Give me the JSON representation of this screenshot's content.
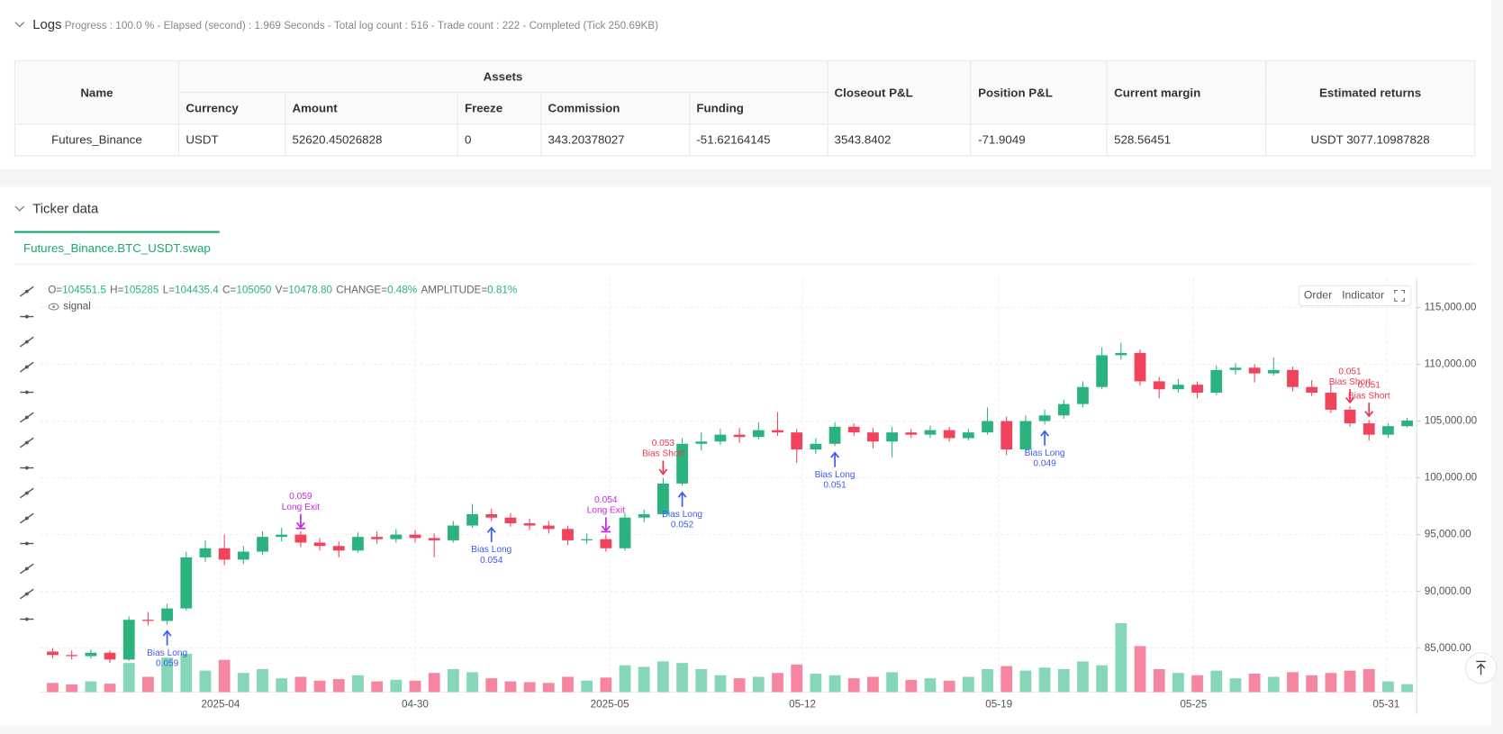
{
  "logs": {
    "title": "Logs",
    "summary": "Progress : 100.0 % - Elapsed (second) : 1.969  Seconds - Total log count : 516 - Trade count : 222 - Completed (Tick 250.69KB)"
  },
  "table": {
    "group": "Assets",
    "columns": [
      "Name",
      "Currency",
      "Amount",
      "Freeze",
      "Commission",
      "Funding",
      "Closeout P&L",
      "Position P&L",
      "Current margin",
      "Estimated returns"
    ],
    "rows": [
      [
        "Futures_Binance",
        "USDT",
        "52620.45026828",
        "0",
        "343.20378027",
        "-51.62164145",
        "3543.8402",
        "-71.9049",
        "528.56451",
        "USDT 3077.10987828"
      ]
    ]
  },
  "ticker": {
    "title": "Ticker data",
    "tab": "Futures_Binance.BTC_USDT.swap"
  },
  "chart_data": {
    "type": "candlestick",
    "info": [
      {
        "key": "O=",
        "value": "104551.5"
      },
      {
        "key": "H=",
        "value": "105285"
      },
      {
        "key": "L=",
        "value": "104435.4"
      },
      {
        "key": "C=",
        "value": "105050"
      },
      {
        "key": "V=",
        "value": "10478.80"
      },
      {
        "key": "CHANGE=",
        "value": "0.48%"
      },
      {
        "key": "AMPLITUDE=",
        "value": "0.81%"
      }
    ],
    "legend": "signal",
    "buttons": [
      "Order",
      "Indicator"
    ],
    "up_color": "#2ab37f",
    "down_color": "#f0435c",
    "up_volume_color": "#86d6b8",
    "down_volume_color": "#f585a0",
    "grid": true,
    "xlim": [
      0,
      72
    ],
    "xticks": [
      {
        "value": 9.3,
        "label": "2025-04"
      },
      {
        "value": 19.5,
        "label": "04-30"
      },
      {
        "value": 29.7,
        "label": "2025-05"
      },
      {
        "value": 39.8,
        "label": "05-12"
      },
      {
        "value": 50.1,
        "label": "05-19"
      },
      {
        "value": 60.3,
        "label": "05-25"
      },
      {
        "value": 70.4,
        "label": "05-31"
      }
    ],
    "ylim": [
      81300,
      117600
    ],
    "yticks": [
      {
        "value": 85000,
        "label": "85,000.00"
      },
      {
        "value": 90000,
        "label": "90,000.00"
      },
      {
        "value": 95000,
        "label": "95,000.00"
      },
      {
        "value": 100000,
        "label": "100,000.00"
      },
      {
        "value": 105000,
        "label": "105,000.00"
      },
      {
        "value": 110000,
        "label": "110,000.00"
      },
      {
        "value": 115000,
        "label": "115,000.00"
      }
    ],
    "volume_lim": [
      0,
      95000
    ],
    "candles": [
      [
        84700,
        85000,
        84100,
        84400
      ],
      [
        84400,
        84800,
        84000,
        84300
      ],
      [
        84300,
        84900,
        84100,
        84600
      ],
      [
        84600,
        84800,
        83700,
        84000
      ],
      [
        84000,
        87800,
        83900,
        87500
      ],
      [
        87500,
        88200,
        87000,
        87400
      ],
      [
        87400,
        88900,
        87100,
        88500
      ],
      [
        88500,
        93500,
        88300,
        93000
      ],
      [
        93000,
        94500,
        92600,
        93800
      ],
      [
        93800,
        95000,
        92300,
        92800
      ],
      [
        92800,
        94000,
        92400,
        93500
      ],
      [
        93500,
        95300,
        93200,
        94800
      ],
      [
        94800,
        95600,
        94400,
        95000
      ],
      [
        95000,
        95300,
        93900,
        94300
      ],
      [
        94300,
        94700,
        93600,
        94000
      ],
      [
        94000,
        94400,
        93000,
        93600
      ],
      [
        93600,
        95200,
        93400,
        94800
      ],
      [
        94800,
        95300,
        94200,
        94600
      ],
      [
        94600,
        95500,
        94300,
        95000
      ],
      [
        95000,
        95400,
        94300,
        94700
      ],
      [
        94700,
        95100,
        93000,
        94500
      ],
      [
        94500,
        96200,
        94300,
        95800
      ],
      [
        95800,
        97700,
        95600,
        96800
      ],
      [
        96800,
        97300,
        96200,
        96500
      ],
      [
        96500,
        96900,
        95700,
        96000
      ],
      [
        96000,
        96400,
        95400,
        95800
      ],
      [
        95800,
        96200,
        95100,
        95500
      ],
      [
        95500,
        95800,
        94100,
        94500
      ],
      [
        94500,
        95100,
        94200,
        94600
      ],
      [
        94600,
        95000,
        93500,
        93800
      ],
      [
        93800,
        96900,
        93600,
        96500
      ],
      [
        96500,
        97200,
        96100,
        96800
      ],
      [
        96800,
        100000,
        96500,
        99500
      ],
      [
        99500,
        103500,
        99300,
        103000
      ],
      [
        103000,
        104000,
        102400,
        103200
      ],
      [
        103200,
        104300,
        102900,
        103800
      ],
      [
        103800,
        104400,
        103100,
        103600
      ],
      [
        103600,
        104900,
        103400,
        104200
      ],
      [
        104200,
        105800,
        103700,
        104000
      ],
      [
        104000,
        104300,
        101300,
        102500
      ],
      [
        102500,
        103500,
        102100,
        103000
      ],
      [
        103000,
        104900,
        102800,
        104500
      ],
      [
        104500,
        104800,
        103700,
        104000
      ],
      [
        104000,
        104400,
        102600,
        103200
      ],
      [
        103200,
        104500,
        101800,
        104000
      ],
      [
        104000,
        104300,
        103500,
        103800
      ],
      [
        103800,
        104600,
        103500,
        104200
      ],
      [
        104200,
        104500,
        103200,
        103500
      ],
      [
        103500,
        104300,
        103300,
        104000
      ],
      [
        104000,
        106200,
        103800,
        105000
      ],
      [
        105000,
        105400,
        102000,
        102500
      ],
      [
        102500,
        105500,
        102300,
        105000
      ],
      [
        105000,
        106000,
        104700,
        105500
      ],
      [
        105500,
        106900,
        105200,
        106500
      ],
      [
        106500,
        108500,
        106200,
        108000
      ],
      [
        108000,
        111500,
        107800,
        110800
      ],
      [
        110800,
        111900,
        110400,
        111000
      ],
      [
        111000,
        111300,
        108100,
        108500
      ],
      [
        108500,
        108900,
        107000,
        107800
      ],
      [
        107800,
        108700,
        107500,
        108200
      ],
      [
        108200,
        108500,
        107000,
        107500
      ],
      [
        107500,
        109900,
        107300,
        109500
      ],
      [
        109500,
        110100,
        109100,
        109700
      ],
      [
        109700,
        110000,
        108400,
        109200
      ],
      [
        109200,
        110600,
        109000,
        109500
      ],
      [
        109500,
        109800,
        107600,
        108000
      ],
      [
        108000,
        108600,
        107200,
        107500
      ],
      [
        107500,
        108300,
        105700,
        106000
      ],
      [
        106000,
        106300,
        104500,
        104800
      ],
      [
        104800,
        105100,
        103300,
        103800
      ],
      [
        103800,
        104800,
        103500,
        104551.5
      ],
      [
        104551.5,
        105285,
        104435.4,
        105050
      ]
    ],
    "volumes": [
      12000,
      10000,
      14000,
      11000,
      38000,
      20000,
      45000,
      50000,
      28000,
      42000,
      25000,
      30000,
      18000,
      20000,
      15000,
      17000,
      22000,
      14000,
      16000,
      15000,
      25000,
      30000,
      26000,
      18000,
      14000,
      13000,
      12000,
      20000,
      15000,
      19000,
      35000,
      33000,
      40000,
      38000,
      30000,
      22000,
      18000,
      20000,
      25000,
      36000,
      24000,
      22000,
      18000,
      20000,
      26000,
      16000,
      18000,
      15000,
      20000,
      30000,
      34000,
      28000,
      32000,
      30000,
      40000,
      35000,
      90000,
      60000,
      30000,
      25000,
      22000,
      28000,
      18000,
      24000,
      20000,
      26000,
      22000,
      25000,
      28000,
      30000,
      14000,
      10478.8
    ],
    "signals": [
      {
        "candle": 6,
        "kind": "long",
        "color": "#3d5af1",
        "labels": [
          "Bias Long",
          "0.059"
        ]
      },
      {
        "candle": 13,
        "kind": "exit",
        "color": "#c52bdb",
        "labels": [
          "0.059",
          "Long Exit"
        ]
      },
      {
        "candle": 23,
        "kind": "long",
        "color": "#3d5af1",
        "labels": [
          "Bias Long",
          "0.054"
        ]
      },
      {
        "candle": 29,
        "kind": "exit",
        "color": "#c52bdb",
        "labels": [
          "0.054",
          "Long Exit"
        ]
      },
      {
        "candle": 32,
        "kind": "short",
        "color": "#e8384f",
        "labels": [
          "0.053",
          "Bias Short"
        ]
      },
      {
        "candle": 33,
        "kind": "long",
        "color": "#3d5af1",
        "labels": [
          "Bias Long",
          "0.052"
        ]
      },
      {
        "candle": 41,
        "kind": "long",
        "color": "#3d5af1",
        "labels": [
          "Bias Long",
          "0.051"
        ]
      },
      {
        "candle": 52,
        "kind": "long",
        "color": "#3d5af1",
        "labels": [
          "Bias Long",
          "0.049"
        ]
      },
      {
        "candle": 68,
        "kind": "short",
        "color": "#e8384f",
        "labels": [
          "0.051",
          "Bias Short"
        ]
      },
      {
        "candle": 69,
        "kind": "short",
        "color": "#e8384f",
        "labels": [
          "0.051",
          "Bias Short"
        ]
      }
    ]
  }
}
